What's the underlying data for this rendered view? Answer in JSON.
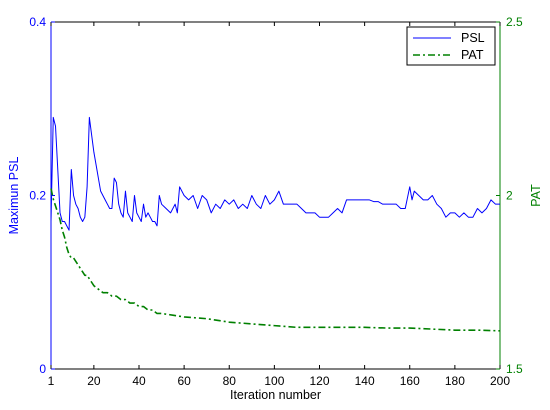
{
  "chart_data": {
    "type": "line",
    "title": "",
    "xlabel": "Iteration number",
    "xlim": [
      1,
      200
    ],
    "x_ticks": [
      "1",
      "20",
      "40",
      "60",
      "80",
      "100",
      "120",
      "140",
      "160",
      "180",
      "200"
    ],
    "x_tick_values": [
      1,
      20,
      40,
      60,
      80,
      100,
      120,
      140,
      160,
      180,
      200
    ],
    "y_left": {
      "label": "Maximun PSL",
      "lim": [
        0,
        0.4
      ],
      "ticks": [
        "0",
        "0.2",
        "0.4"
      ],
      "tick_values": [
        0,
        0.2,
        0.4
      ],
      "color": "#0000ff"
    },
    "y_right": {
      "label": "PAT",
      "lim": [
        1.5,
        2.5
      ],
      "ticks": [
        "1.5",
        "2",
        "2.5"
      ],
      "tick_values": [
        1.5,
        2.0,
        2.5
      ],
      "color": "#008000"
    },
    "grid": false,
    "legend_position": "top-right",
    "series": [
      {
        "name": "PSL",
        "axis": "left",
        "style": "solid",
        "color": "#0000ff",
        "x": [
          1,
          2,
          3,
          4,
          5,
          6,
          7,
          8,
          9,
          10,
          11,
          12,
          13,
          14,
          15,
          16,
          17,
          18,
          19,
          20,
          21,
          22,
          23,
          24,
          25,
          26,
          27,
          28,
          29,
          30,
          31,
          32,
          33,
          34,
          35,
          36,
          37,
          38,
          39,
          40,
          41,
          42,
          43,
          44,
          45,
          46,
          47,
          48,
          49,
          50,
          52,
          54,
          56,
          57,
          58,
          60,
          62,
          64,
          66,
          68,
          70,
          72,
          74,
          76,
          78,
          80,
          82,
          84,
          86,
          88,
          90,
          92,
          94,
          96,
          98,
          100,
          102,
          104,
          106,
          108,
          110,
          112,
          114,
          116,
          118,
          120,
          122,
          124,
          126,
          128,
          130,
          132,
          134,
          136,
          138,
          140,
          142,
          144,
          146,
          148,
          150,
          152,
          154,
          156,
          158,
          160,
          161,
          162,
          164,
          166,
          168,
          170,
          172,
          174,
          176,
          178,
          180,
          182,
          184,
          186,
          188,
          190,
          192,
          194,
          196,
          198,
          200
        ],
        "y": [
          0.17,
          0.29,
          0.28,
          0.23,
          0.18,
          0.17,
          0.17,
          0.165,
          0.16,
          0.23,
          0.2,
          0.19,
          0.185,
          0.175,
          0.17,
          0.175,
          0.21,
          0.29,
          0.27,
          0.25,
          0.235,
          0.22,
          0.205,
          0.2,
          0.195,
          0.19,
          0.185,
          0.185,
          0.22,
          0.215,
          0.19,
          0.18,
          0.175,
          0.205,
          0.18,
          0.175,
          0.17,
          0.2,
          0.18,
          0.175,
          0.17,
          0.19,
          0.175,
          0.18,
          0.175,
          0.17,
          0.17,
          0.165,
          0.2,
          0.19,
          0.185,
          0.18,
          0.19,
          0.18,
          0.21,
          0.2,
          0.195,
          0.2,
          0.185,
          0.2,
          0.195,
          0.18,
          0.19,
          0.185,
          0.195,
          0.19,
          0.195,
          0.185,
          0.19,
          0.185,
          0.2,
          0.19,
          0.185,
          0.2,
          0.19,
          0.195,
          0.205,
          0.19,
          0.19,
          0.19,
          0.19,
          0.185,
          0.18,
          0.18,
          0.18,
          0.175,
          0.175,
          0.175,
          0.18,
          0.185,
          0.18,
          0.195,
          0.195,
          0.195,
          0.195,
          0.195,
          0.195,
          0.193,
          0.193,
          0.19,
          0.19,
          0.19,
          0.19,
          0.185,
          0.185,
          0.21,
          0.195,
          0.205,
          0.2,
          0.195,
          0.195,
          0.2,
          0.19,
          0.185,
          0.175,
          0.18,
          0.18,
          0.175,
          0.18,
          0.175,
          0.175,
          0.185,
          0.18,
          0.185,
          0.195,
          0.19,
          0.19
        ]
      },
      {
        "name": "PAT",
        "axis": "right",
        "style": "dash-dot",
        "color": "#008000",
        "x": [
          1,
          2,
          3,
          4,
          5,
          6,
          7,
          8,
          9,
          10,
          11,
          12,
          13,
          14,
          15,
          16,
          17,
          18,
          19,
          20,
          22,
          24,
          26,
          28,
          30,
          32,
          34,
          36,
          38,
          40,
          42,
          44,
          46,
          48,
          50,
          55,
          60,
          70,
          80,
          90,
          100,
          110,
          120,
          130,
          140,
          150,
          160,
          170,
          180,
          190,
          200
        ],
        "y": [
          2.02,
          1.99,
          1.97,
          1.95,
          1.93,
          1.9,
          1.88,
          1.85,
          1.83,
          1.82,
          1.82,
          1.81,
          1.8,
          1.79,
          1.78,
          1.77,
          1.77,
          1.76,
          1.75,
          1.74,
          1.73,
          1.72,
          1.72,
          1.71,
          1.71,
          1.7,
          1.7,
          1.69,
          1.69,
          1.68,
          1.68,
          1.67,
          1.67,
          1.66,
          1.66,
          1.655,
          1.65,
          1.645,
          1.635,
          1.63,
          1.625,
          1.62,
          1.62,
          1.62,
          1.62,
          1.618,
          1.618,
          1.615,
          1.612,
          1.612,
          1.61
        ]
      }
    ]
  }
}
